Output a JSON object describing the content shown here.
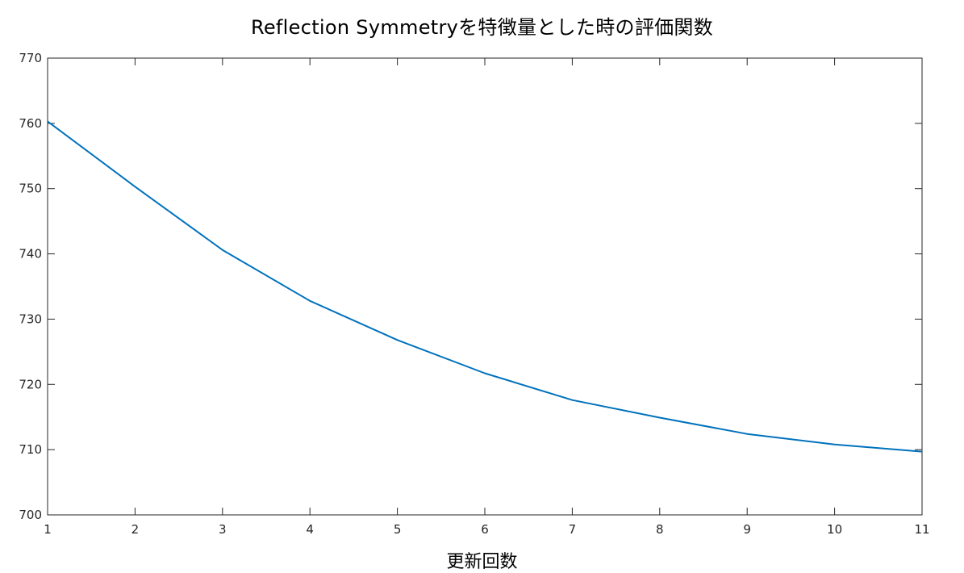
{
  "chart_data": {
    "type": "line",
    "title": "Reflection Symmetryを特徴量とした時の評価関数",
    "xlabel": "更新回数",
    "ylabel": "",
    "x": [
      1,
      2,
      3,
      4,
      5,
      6,
      7,
      8,
      9,
      10,
      11
    ],
    "series": [
      {
        "values": [
          760.3,
          750.3,
          740.6,
          732.8,
          726.8,
          721.7,
          717.6,
          714.9,
          712.4,
          710.8,
          709.7
        ],
        "color": "#0072BD"
      }
    ],
    "xlim": [
      1,
      11
    ],
    "ylim": [
      700,
      770
    ],
    "xticks": [
      1,
      2,
      3,
      4,
      5,
      6,
      7,
      8,
      9,
      10,
      11
    ],
    "yticks": [
      700,
      710,
      720,
      730,
      740,
      750,
      760,
      770
    ],
    "grid": false,
    "legend": "none"
  }
}
